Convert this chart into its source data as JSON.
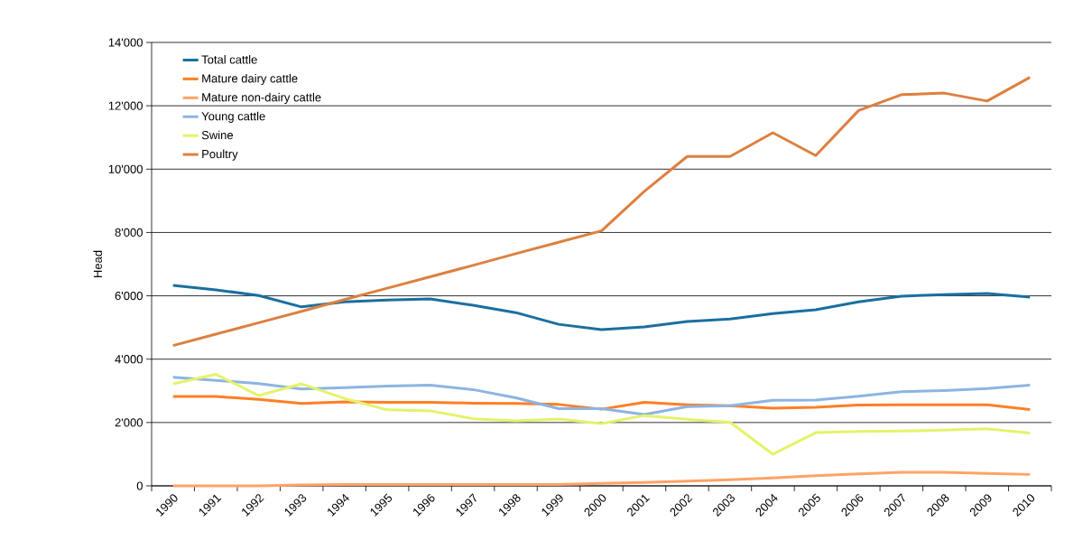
{
  "chart_data": {
    "type": "line",
    "ylabel": "Head",
    "categories": [
      "1990",
      "1991",
      "1992",
      "1993",
      "1994",
      "1995",
      "1996",
      "1997",
      "1998",
      "1999",
      "2000",
      "2001",
      "2002",
      "2003",
      "2004",
      "2005",
      "2006",
      "2007",
      "2008",
      "2009",
      "2010"
    ],
    "series": [
      {
        "name": "Total cattle",
        "color": "#1a6fa0",
        "values": [
          6330,
          6190,
          6010,
          5650,
          5810,
          5870,
          5900,
          5700,
          5470,
          5100,
          4930,
          5020,
          5190,
          5270,
          5440,
          5560,
          5810,
          5990,
          6040,
          6070,
          5960
        ]
      },
      {
        "name": "Mature dairy cattle",
        "color": "#ff7f27",
        "values": [
          2820,
          2820,
          2730,
          2600,
          2650,
          2640,
          2640,
          2610,
          2600,
          2570,
          2420,
          2640,
          2560,
          2530,
          2450,
          2480,
          2550,
          2560,
          2560,
          2560,
          2410
        ]
      },
      {
        "name": "Mature non-dairy cattle",
        "color": "#ffa366",
        "values": [
          0,
          0,
          0,
          30,
          40,
          40,
          40,
          40,
          40,
          40,
          80,
          110,
          150,
          190,
          250,
          320,
          380,
          430,
          430,
          390,
          360
        ]
      },
      {
        "name": "Young cattle",
        "color": "#8db4e2",
        "values": [
          3430,
          3330,
          3230,
          3060,
          3100,
          3150,
          3180,
          3040,
          2780,
          2440,
          2440,
          2250,
          2500,
          2530,
          2700,
          2710,
          2830,
          2970,
          3010,
          3070,
          3180
        ]
      },
      {
        "name": "Swine",
        "color": "#e5f26a",
        "values": [
          3220,
          3520,
          2850,
          3220,
          2760,
          2400,
          2370,
          2120,
          2050,
          2110,
          1970,
          2220,
          2100,
          2010,
          1000,
          1680,
          1720,
          1730,
          1760,
          1800,
          1670
        ]
      },
      {
        "name": "Poultry",
        "color": "#dd8040",
        "values": [
          4430,
          4790,
          5150,
          5510,
          5880,
          6240,
          6600,
          6960,
          7330,
          7690,
          8050,
          9300,
          10400,
          10400,
          11150,
          10430,
          11850,
          12350,
          12400,
          12150,
          12900
        ]
      }
    ],
    "ylim": [
      0,
      14000
    ],
    "yticks": [
      {
        "value": 0,
        "label": "0"
      },
      {
        "value": 2000,
        "label": "2'000"
      },
      {
        "value": 4000,
        "label": "4'000"
      },
      {
        "value": 6000,
        "label": "6'000"
      },
      {
        "value": 8000,
        "label": "8'000"
      },
      {
        "value": 10000,
        "label": "10'000"
      },
      {
        "value": 12000,
        "label": "12'000"
      },
      {
        "value": 14000,
        "label": "14'000"
      }
    ],
    "grid": "y",
    "legend": "top left",
    "marker": "none",
    "line_style": "solid"
  }
}
